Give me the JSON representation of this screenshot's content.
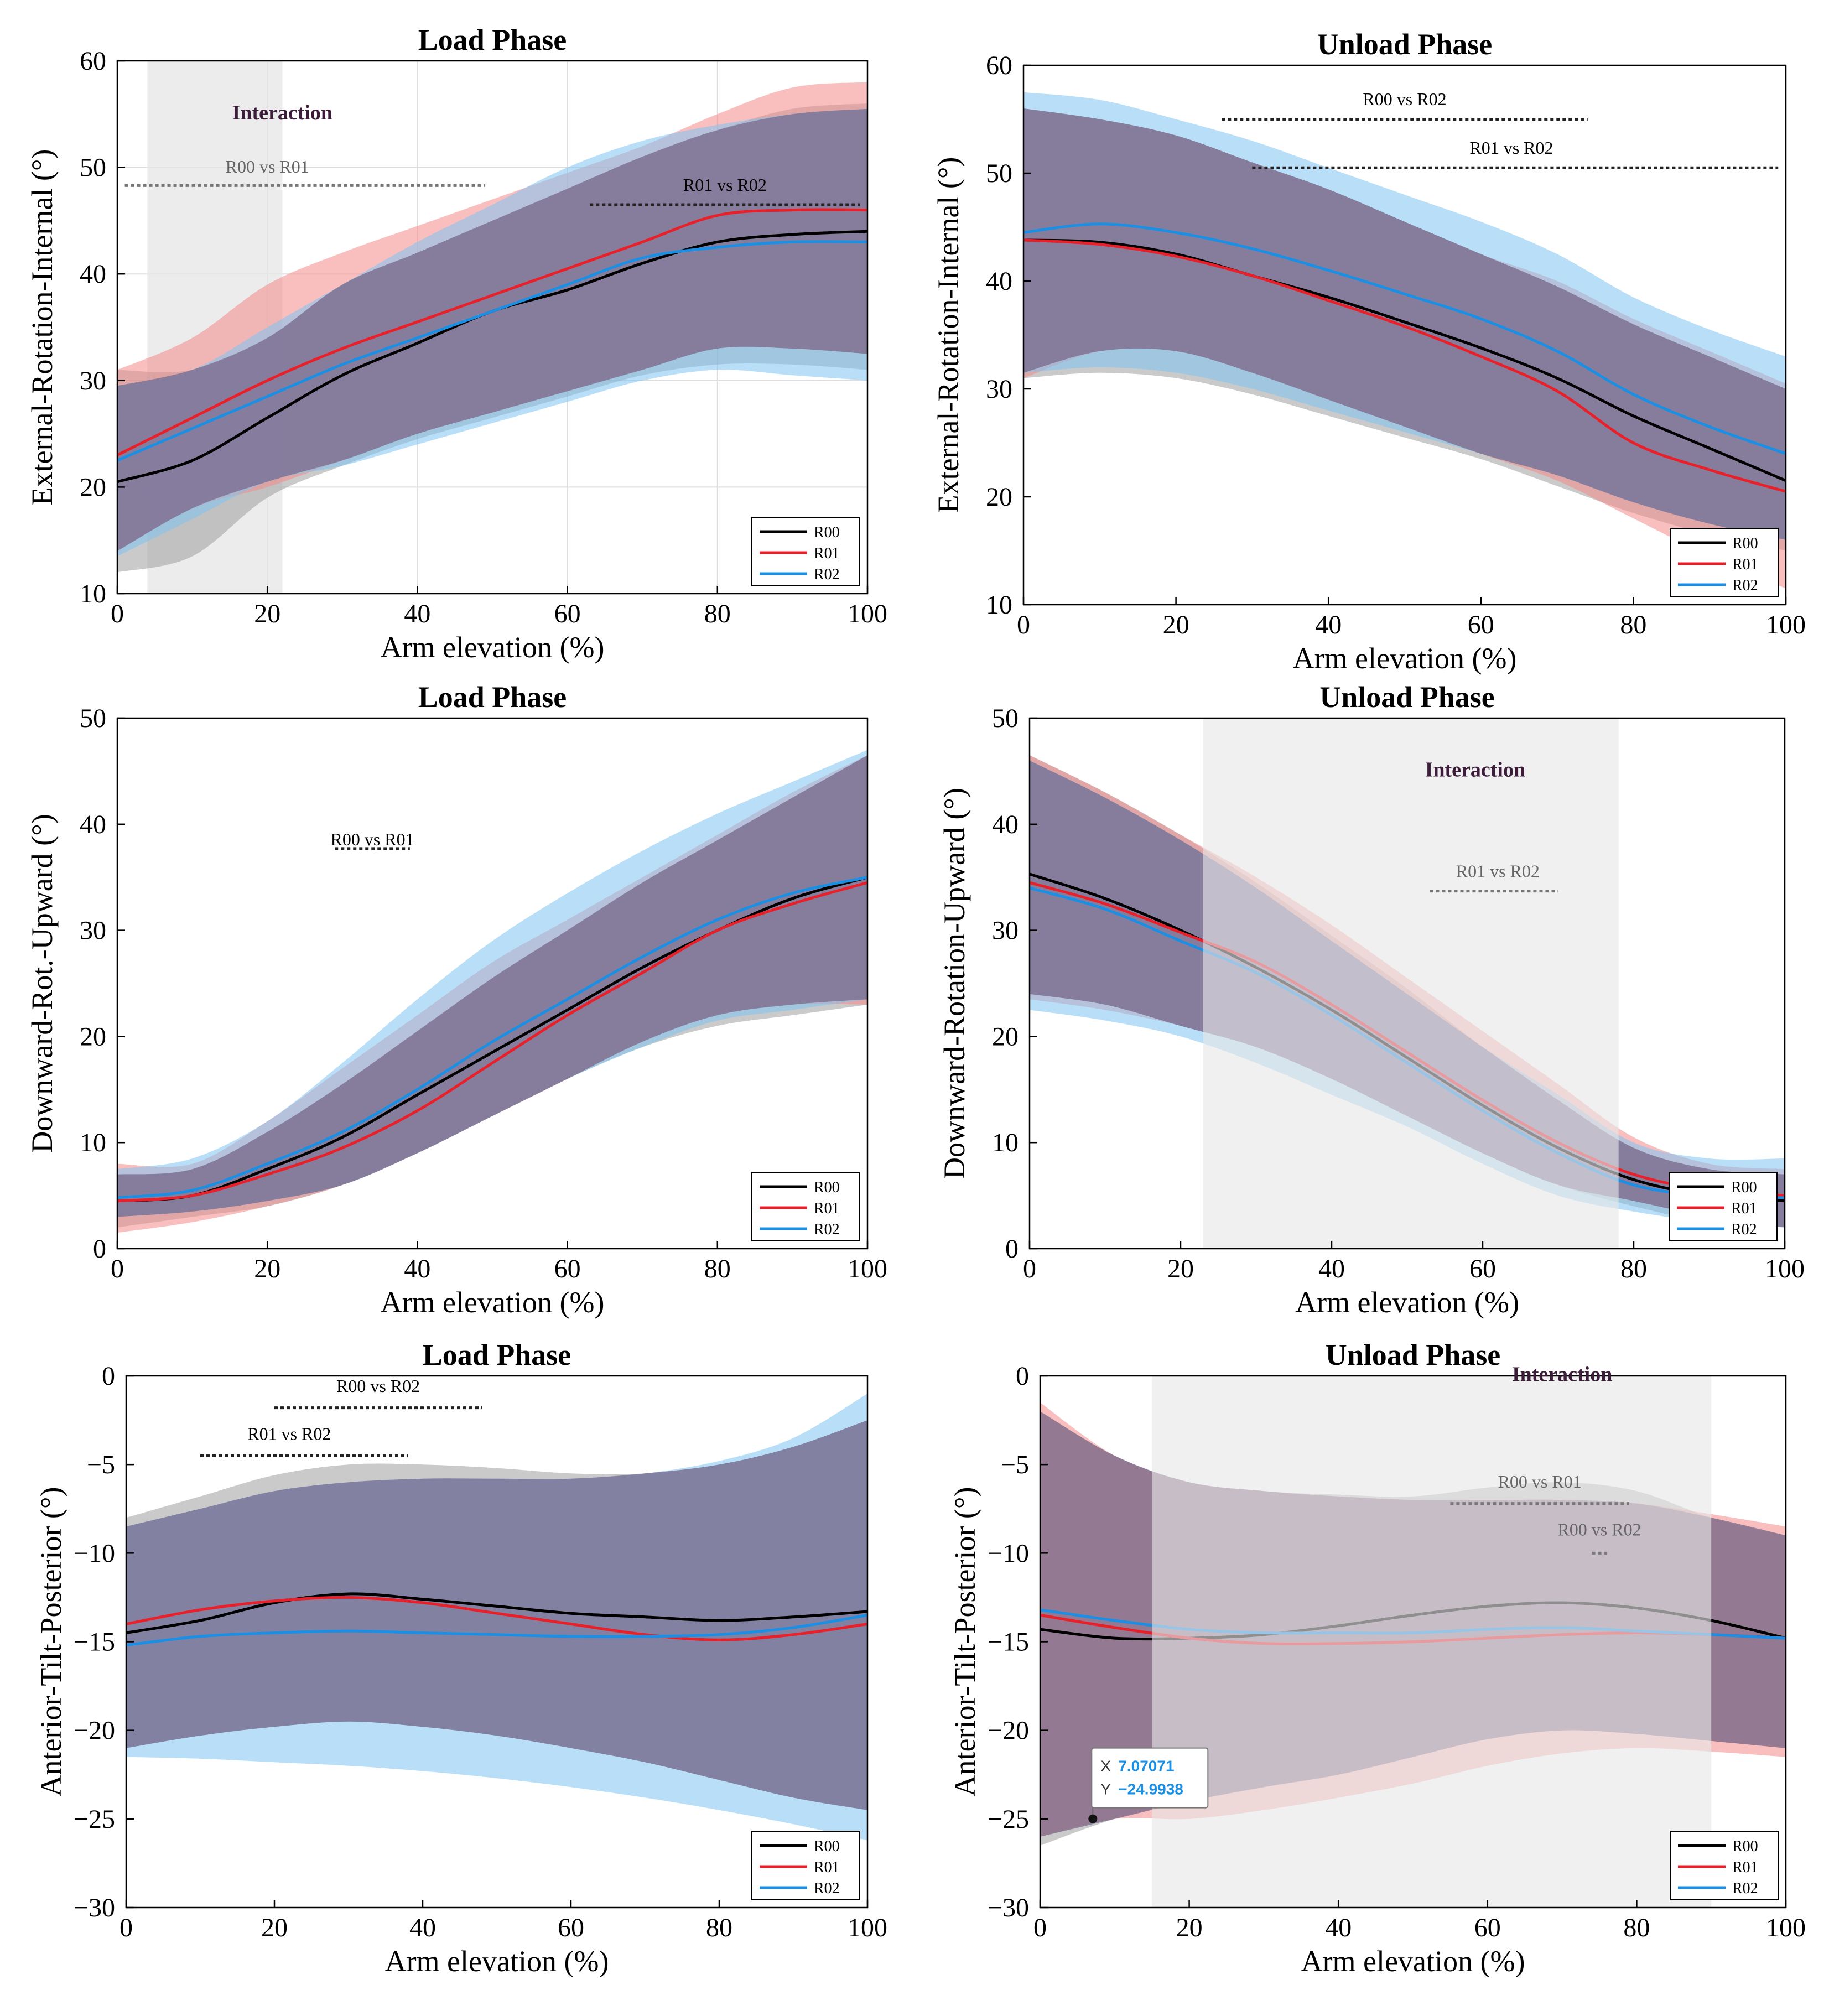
{
  "colors": {
    "R00": "#000000",
    "R01": "#e8202a",
    "R02": "#1a8fe3",
    "band_R00": "#9e9e9e",
    "band_R01": "#f48a8a",
    "band_R02": "#7fc4f2",
    "overlap": "#7a6a8c",
    "shade": "#e6e6e6",
    "interaction_text": "#3b1d3a"
  },
  "chart_data": [
    {
      "id": "p1",
      "type": "line",
      "title": "Load Phase",
      "xlabel": "Arm elevation (%)",
      "ylabel": "External-Rotation-Internal (°)",
      "xlim": [
        0,
        100
      ],
      "ylim": [
        10,
        60
      ],
      "xticks": [
        "0",
        "20",
        "40",
        "60",
        "80",
        "100"
      ],
      "yticks": [
        "10",
        "20",
        "30",
        "40",
        "50",
        "60"
      ],
      "grid": true,
      "legend": [
        "R00",
        "R01",
        "R02"
      ],
      "legend_position": "bottom-right",
      "x": [
        0,
        10,
        20,
        30,
        40,
        50,
        60,
        70,
        80,
        90,
        100
      ],
      "series": [
        {
          "name": "R00",
          "mean": [
            20.5,
            22.5,
            26.5,
            30.5,
            33.5,
            36.5,
            38.5,
            41,
            43,
            43.7,
            44
          ],
          "upper": [
            31,
            31,
            34,
            39,
            42,
            45,
            48,
            51,
            53.5,
            55.5,
            56
          ],
          "lower": [
            12,
            13.5,
            19,
            22,
            24.5,
            26.5,
            28.5,
            30.5,
            31.5,
            31.5,
            31
          ]
        },
        {
          "name": "R01",
          "mean": [
            23,
            26.5,
            30,
            33,
            35.5,
            38,
            40.5,
            43,
            45.5,
            46,
            46
          ],
          "upper": [
            31,
            34,
            39,
            42,
            44.5,
            47,
            49.5,
            52,
            55,
            57.5,
            58
          ],
          "lower": [
            14,
            18,
            20,
            22.5,
            25,
            27,
            29,
            31,
            33,
            33,
            32.5
          ]
        },
        {
          "name": "R02",
          "mean": [
            22.5,
            25.5,
            28.5,
            31.5,
            34,
            36.5,
            39,
            41.5,
            42.5,
            43,
            43
          ],
          "upper": [
            29.5,
            31,
            35,
            39,
            43,
            46.5,
            50,
            52.5,
            54,
            55,
            55.5
          ],
          "lower": [
            13.5,
            17,
            20.5,
            22,
            24,
            26,
            28,
            30,
            31,
            30.5,
            30
          ]
        }
      ],
      "shaded_region": {
        "x0": 4,
        "x1": 22,
        "label": "Interaction"
      },
      "annotations": [
        {
          "text": "R00 vs R01",
          "x0": 1,
          "x1": 49,
          "y": 48.3,
          "label_x": 20,
          "label_y": 49.5,
          "grey": true
        },
        {
          "text": "R01 vs R02",
          "x0": 63,
          "x1": 99,
          "y": 46.5,
          "label_x": 81,
          "label_y": 47.8,
          "grey": false
        }
      ],
      "interaction_label_pos": [
        22,
        54.5
      ]
    },
    {
      "id": "p2",
      "type": "line",
      "title": "Unload Phase",
      "xlabel": "Arm elevation (%)",
      "ylabel": "External-Rotation-Internal (°)",
      "xlim": [
        0,
        100
      ],
      "ylim": [
        10,
        60
      ],
      "xticks": [
        "0",
        "20",
        "40",
        "60",
        "80",
        "100"
      ],
      "yticks": [
        "10",
        "20",
        "30",
        "40",
        "50",
        "60"
      ],
      "grid": false,
      "legend": [
        "R00",
        "R01",
        "R02"
      ],
      "legend_position": "bottom-right",
      "x": [
        0,
        10,
        20,
        30,
        40,
        50,
        60,
        70,
        80,
        90,
        100
      ],
      "series": [
        {
          "name": "R00",
          "mean": [
            43.8,
            43.6,
            42.5,
            40.5,
            38.5,
            36.2,
            33.8,
            31,
            27.5,
            24.5,
            21.5
          ],
          "upper": [
            56,
            55,
            53.5,
            51,
            48.5,
            45.5,
            42.5,
            39.5,
            36,
            33,
            30
          ],
          "lower": [
            31,
            31.5,
            31,
            29.5,
            27.5,
            25.5,
            23.5,
            21,
            18.5,
            16.5,
            15
          ]
        },
        {
          "name": "R01",
          "mean": [
            43.8,
            43.4,
            42.3,
            40.5,
            38.2,
            35.8,
            33,
            29.8,
            25,
            22.5,
            20.5
          ],
          "upper": [
            56,
            55,
            53.5,
            51,
            48.5,
            45.5,
            42.5,
            40,
            36.5,
            33.5,
            30.5
          ],
          "lower": [
            31,
            33.5,
            33.5,
            31.5,
            29,
            26.5,
            24,
            21.5,
            18,
            14.5,
            11.5
          ]
        },
        {
          "name": "R02",
          "mean": [
            44.5,
            45.3,
            44.5,
            43,
            41,
            38.8,
            36.5,
            33.5,
            29.5,
            26.5,
            24
          ],
          "upper": [
            57.5,
            56.8,
            55,
            53,
            50.5,
            48,
            45.5,
            42.5,
            38.5,
            35.5,
            33
          ],
          "lower": [
            31.5,
            32,
            31.5,
            30,
            28,
            26,
            24,
            22,
            19.5,
            17.5,
            16
          ]
        }
      ],
      "shaded_region": null,
      "annotations": [
        {
          "text": "R00 vs R02",
          "x0": 26,
          "x1": 74,
          "y": 55,
          "label_x": 50,
          "label_y": 56.3,
          "grey": false
        },
        {
          "text": "R01 vs R02",
          "x0": 30,
          "x1": 99,
          "y": 50.5,
          "label_x": 64,
          "label_y": 51.8,
          "grey": false
        }
      ]
    },
    {
      "id": "p3",
      "type": "line",
      "title": "Load Phase",
      "xlabel": "Arm elevation (%)",
      "ylabel": "Downward-Rot.-Upward (°)",
      "xlim": [
        0,
        100
      ],
      "ylim": [
        0,
        50
      ],
      "xticks": [
        "0",
        "20",
        "40",
        "60",
        "80",
        "100"
      ],
      "yticks": [
        "0",
        "10",
        "20",
        "30",
        "40",
        "50"
      ],
      "grid": false,
      "legend": [
        "R00",
        "R01",
        "R02"
      ],
      "legend_position": "bottom-right",
      "x": [
        0,
        10,
        20,
        30,
        40,
        50,
        60,
        70,
        80,
        90,
        100
      ],
      "series": [
        {
          "name": "R00",
          "mean": [
            4.5,
            5,
            7.5,
            10.5,
            14.5,
            18.5,
            22.5,
            26.5,
            30,
            33,
            35
          ],
          "upper": [
            7,
            7.5,
            11,
            15.5,
            20.5,
            25.5,
            30,
            34.5,
            38.5,
            42.5,
            46.5
          ],
          "lower": [
            2,
            3,
            4,
            6,
            9,
            12.5,
            16,
            19,
            21,
            22,
            23
          ]
        },
        {
          "name": "R01",
          "mean": [
            4.5,
            5,
            7,
            9.5,
            13,
            17.5,
            22,
            26,
            30,
            32.5,
            34.5
          ],
          "upper": [
            8,
            8,
            12,
            17,
            22,
            27,
            31,
            35,
            39,
            43,
            46.5
          ],
          "lower": [
            1.5,
            2.5,
            4,
            6,
            9,
            12.5,
            16,
            19.5,
            22,
            23,
            23
          ]
        },
        {
          "name": "R02",
          "mean": [
            4.8,
            5.5,
            8,
            11,
            15,
            19.5,
            23.5,
            27.5,
            31,
            33.5,
            35
          ],
          "upper": [
            7.5,
            8.5,
            12,
            17.5,
            23.5,
            29,
            33.5,
            37.5,
            41,
            44,
            47
          ],
          "lower": [
            3,
            3.5,
            4.5,
            6,
            9,
            12.5,
            16,
            19,
            21.5,
            22.5,
            23.5
          ]
        }
      ],
      "shaded_region": null,
      "annotations": [
        {
          "text": "R00 vs R01",
          "x0": 29,
          "x1": 39,
          "y": 37.7,
          "label_x": 34,
          "label_y": 38,
          "grey": false
        }
      ]
    },
    {
      "id": "p4",
      "type": "line",
      "title": "Unload Phase",
      "xlabel": "Arm elevation (%)",
      "ylabel": "Downward-Rotation-Upward (°)",
      "xlim": [
        0,
        100
      ],
      "ylim": [
        0,
        50
      ],
      "xticks": [
        "0",
        "20",
        "40",
        "60",
        "80",
        "100"
      ],
      "yticks": [
        "0",
        "10",
        "20",
        "30",
        "40",
        "50"
      ],
      "grid": false,
      "legend": [
        "R00",
        "R01",
        "R02"
      ],
      "legend_position": "bottom-right",
      "x": [
        0,
        10,
        20,
        30,
        40,
        50,
        60,
        70,
        80,
        90,
        100
      ],
      "series": [
        {
          "name": "R00",
          "mean": [
            35.3,
            33,
            30,
            26.5,
            22.5,
            18,
            13.5,
            9.5,
            6.5,
            5,
            4.5
          ],
          "upper": [
            46.5,
            43,
            39,
            34.5,
            29.5,
            24.5,
            19,
            14,
            9.5,
            7.5,
            7
          ],
          "lower": [
            24,
            23,
            21,
            19,
            16,
            12.5,
            9,
            6,
            4,
            2.5,
            2
          ]
        },
        {
          "name": "R01",
          "mean": [
            34.5,
            32.5,
            29.8,
            27,
            23,
            18.5,
            14,
            10,
            7,
            5.5,
            5
          ],
          "upper": [
            46.5,
            43,
            39,
            35,
            30.5,
            25.5,
            20.5,
            15.5,
            10.5,
            8,
            7.5
          ],
          "lower": [
            23.5,
            22.5,
            21,
            19,
            16,
            12.5,
            9,
            6,
            4.5,
            3,
            2
          ]
        },
        {
          "name": "R02",
          "mean": [
            34,
            32,
            29,
            26,
            22,
            17.5,
            13,
            9,
            6,
            5,
            4.8
          ],
          "upper": [
            46,
            42.5,
            38.5,
            34,
            29,
            24,
            19,
            14.5,
            10,
            8.5,
            8.5
          ],
          "lower": [
            22.5,
            21.5,
            20,
            17.5,
            14.5,
            11.5,
            8,
            5,
            3.5,
            2.5,
            2
          ]
        }
      ],
      "shaded_region": {
        "x0": 23,
        "x1": 78,
        "label": "Interaction"
      },
      "annotations": [
        {
          "text": "R01 vs R02",
          "x0": 53,
          "x1": 70,
          "y": 33.7,
          "label_x": 62,
          "label_y": 35,
          "grey": true
        }
      ],
      "interaction_label_pos": [
        59,
        44.5
      ]
    },
    {
      "id": "p5",
      "type": "line",
      "title": "Load Phase",
      "xlabel": "Arm elevation (%)",
      "ylabel": "Anterior-Tilt-Posterior (°)",
      "xlim": [
        0,
        100
      ],
      "ylim": [
        -30,
        0
      ],
      "xticks": [
        "0",
        "20",
        "40",
        "60",
        "80",
        "100"
      ],
      "yticks": [
        "0",
        "−5",
        "−10",
        "−15",
        "−20",
        "−25",
        "−30"
      ],
      "grid": false,
      "legend": [
        "R00",
        "R01",
        "R02"
      ],
      "legend_position": "bottom-right",
      "x": [
        0,
        10,
        20,
        30,
        40,
        50,
        60,
        70,
        80,
        90,
        100
      ],
      "series": [
        {
          "name": "R00",
          "mean": [
            -14.5,
            -13.8,
            -12.8,
            -12.3,
            -12.6,
            -13,
            -13.4,
            -13.6,
            -13.8,
            -13.6,
            -13.3
          ],
          "upper": [
            -8,
            -6.8,
            -5.6,
            -5,
            -5,
            -5.2,
            -5.5,
            -5.5,
            -5,
            -4,
            -2.5
          ],
          "lower": [
            -21,
            -20.3,
            -19.8,
            -19.5,
            -19.8,
            -20.3,
            -21,
            -21.8,
            -22.8,
            -23.8,
            -24.5
          ]
        },
        {
          "name": "R01",
          "mean": [
            -14,
            -13.2,
            -12.7,
            -12.5,
            -12.8,
            -13.4,
            -14,
            -14.6,
            -14.9,
            -14.6,
            -14
          ]
        },
        {
          "name": "R02",
          "mean": [
            -15.2,
            -14.7,
            -14.5,
            -14.4,
            -14.5,
            -14.6,
            -14.7,
            -14.7,
            -14.6,
            -14.2,
            -13.5
          ],
          "upper": [
            -8.5,
            -7.5,
            -6.5,
            -6,
            -5.8,
            -5.8,
            -5.8,
            -5.5,
            -4.8,
            -3.5,
            -1
          ],
          "lower": [
            -21.5,
            -21.6,
            -21.8,
            -22,
            -22.3,
            -22.7,
            -23.2,
            -23.8,
            -24.5,
            -25.3,
            -26.2
          ]
        }
      ],
      "shaded_region": null,
      "annotations": [
        {
          "text": "R00 vs R02",
          "x0": 20,
          "x1": 48,
          "y": -1.8,
          "label_x": 34,
          "label_y": -0.9,
          "grey": false
        },
        {
          "text": "R01 vs R02",
          "x0": 10,
          "x1": 38,
          "y": -4.5,
          "label_x": 22,
          "label_y": -3.6,
          "grey": false
        }
      ]
    },
    {
      "id": "p6",
      "type": "line",
      "title": "Unload Phase",
      "xlabel": "Arm elevation (%)",
      "ylabel": "Anterior-Tilt-Posterior (°)",
      "xlim": [
        0,
        100
      ],
      "ylim": [
        -30,
        0
      ],
      "xticks": [
        "0",
        "20",
        "40",
        "60",
        "80",
        "100"
      ],
      "yticks": [
        "0",
        "−5",
        "−10",
        "−15",
        "−20",
        "−25",
        "−30"
      ],
      "grid": false,
      "legend": [
        "R00",
        "R01",
        "R02"
      ],
      "legend_position": "bottom-right",
      "x": [
        0,
        10,
        20,
        30,
        40,
        50,
        60,
        70,
        80,
        90,
        100
      ],
      "series": [
        {
          "name": "R00",
          "mean": [
            -14.3,
            -14.8,
            -14.8,
            -14.6,
            -14.1,
            -13.5,
            -13,
            -12.8,
            -13.1,
            -13.8,
            -14.8
          ],
          "upper": [
            -2,
            -4.5,
            -6,
            -6.5,
            -6.7,
            -6.8,
            -6.3,
            -6,
            -6.5,
            -8,
            -9
          ],
          "lower": [
            -26.5,
            -25,
            -24,
            -23.2,
            -22.5,
            -21.5,
            -20.5,
            -20,
            -20.2,
            -20.6,
            -21
          ]
        },
        {
          "name": "R01",
          "mean": [
            -13.5,
            -14.2,
            -14.8,
            -15.1,
            -15.1,
            -15,
            -14.8,
            -14.6,
            -14.5,
            -14.6,
            -14.8
          ],
          "upper": [
            -1.5,
            -4.5,
            -6,
            -6.5,
            -6.8,
            -7,
            -7,
            -7,
            -7.2,
            -7.8,
            -8.5
          ],
          "lower": [
            -26,
            -25,
            -25,
            -24.5,
            -23.8,
            -23,
            -22,
            -21.3,
            -21,
            -21.2,
            -21.5
          ]
        },
        {
          "name": "R02",
          "mean": [
            -13.2,
            -13.8,
            -14.3,
            -14.5,
            -14.5,
            -14.5,
            -14.3,
            -14.2,
            -14.4,
            -14.6,
            -14.8
          ]
        }
      ],
      "shaded_region": {
        "x0": 15,
        "x1": 90,
        "label": "Interaction"
      },
      "annotations": [
        {
          "text": "R00 vs R01",
          "x0": 55,
          "x1": 79,
          "y": -7.2,
          "label_x": 67,
          "label_y": -6.3,
          "grey": true
        },
        {
          "text": "R00 vs R02",
          "x0": 74,
          "x1": 76,
          "y": -10,
          "label_x": 75,
          "label_y": -9,
          "grey": true
        }
      ],
      "interaction_label_pos": [
        70,
        -0.3
      ],
      "datatip": {
        "x_label": "X",
        "y_label": "Y",
        "x_value": "7.07071",
        "y_value": "−24.9938",
        "px": 7.07071,
        "py": -24.9938
      }
    }
  ]
}
